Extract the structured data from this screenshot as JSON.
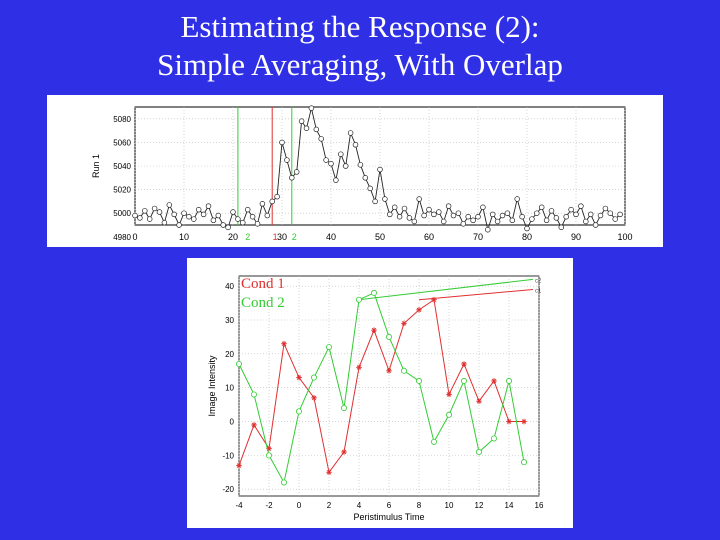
{
  "slide": {
    "title_line1": "Estimating the Response (2):",
    "title_line2": "Simple Averaging, With Overlap"
  },
  "colors": {
    "background": "#2f2fe6",
    "cond1": "#e03030",
    "cond2": "#33cc33",
    "run": "#222222"
  },
  "chart_data": [
    {
      "type": "line",
      "ylabel": "Run 1",
      "xlim": [
        0,
        100
      ],
      "ylim": [
        4990,
        5090
      ],
      "xticks": [
        "0",
        "10",
        "20",
        "30",
        "40",
        "50",
        "60",
        "70",
        "80",
        "90",
        "100"
      ],
      "yticks": [
        "4980",
        "5000",
        "5020",
        "5040",
        "5060",
        "5080"
      ],
      "grid": true,
      "series": [
        {
          "values": [
            4998,
            4996,
            5002,
            4995,
            5004,
            5001,
            4992,
            5007,
            4999,
            4990,
            5000,
            4997,
            4995,
            5003,
            4999,
            5006,
            4994,
            4998,
            4990,
            4988,
            5001,
            4995,
            4992,
            5003,
            4997,
            4991,
            5008,
            4998,
            5010,
            5014,
            5060,
            5045,
            5030,
            5035,
            5078,
            5072,
            5089,
            5071,
            5063,
            5045,
            5042,
            5028,
            5050,
            5040,
            5068,
            5058,
            5041,
            5030,
            5021,
            5010,
            5037,
            5012,
            4999,
            5005,
            4997,
            5004,
            4996,
            4993,
            5012,
            4998,
            5003,
            4999,
            5001,
            4993,
            5006,
            4998,
            5000,
            4991,
            4997,
            4994,
            4997,
            5005,
            4986,
            4999,
            4993,
            4998,
            5000,
            4994,
            5012,
            4997,
            4987,
            4995,
            5000,
            5005,
            4994,
            5002,
            4996,
            4988,
            4997,
            5003,
            4999,
            5006,
            4993,
            4999,
            4990,
            4998,
            5004,
            5000,
            4995,
            4999
          ]
        }
      ],
      "markers": {
        "cond2": [
          21,
          32
        ],
        "cond1": [
          28
        ],
        "labels": [
          {
            "x": 23,
            "text": "2",
            "color_key": "cond2"
          },
          {
            "x": 28.6,
            "text": "1",
            "color_key": "cond1"
          },
          {
            "x": 32.5,
            "text": "2",
            "color_key": "cond2"
          }
        ]
      }
    },
    {
      "type": "line",
      "xlabel": "Peristimulus Time",
      "ylabel": "Image Intensity",
      "xlim": [
        -4,
        16
      ],
      "ylim": [
        -22,
        43
      ],
      "xticks": [
        "-4",
        "-2",
        "0",
        "2",
        "4",
        "6",
        "8",
        "10",
        "12",
        "14",
        "16"
      ],
      "yticks": [
        "-20",
        "-10",
        "0",
        "10",
        "20",
        "30",
        "40"
      ],
      "grid": true,
      "legend": [
        {
          "text": "Cond 1",
          "color_key": "cond1"
        },
        {
          "text": "Cond 2",
          "color_key": "cond2"
        }
      ],
      "series": [
        {
          "color_key": "cond1",
          "marker": "star",
          "x": [
            -4,
            -3,
            -2,
            -1,
            0,
            1,
            2,
            3,
            4,
            5,
            6,
            7,
            8,
            9,
            10,
            11,
            12,
            13,
            14,
            15
          ],
          "values": [
            -13,
            -1,
            -8,
            23,
            13,
            7,
            -15,
            -9,
            16,
            27,
            15,
            29,
            33,
            36,
            8,
            17,
            6,
            12,
            0,
            0
          ]
        },
        {
          "color_key": "cond2",
          "marker": "circle",
          "x": [
            -4,
            -3,
            -2,
            -1,
            0,
            1,
            2,
            3,
            4,
            5,
            6,
            7,
            8,
            9,
            10,
            11,
            12,
            13,
            14,
            15
          ],
          "values": [
            17,
            8,
            -10,
            -18,
            3,
            13,
            22,
            4,
            36,
            38,
            25,
            15,
            12,
            -6,
            2,
            12,
            -9,
            -5,
            12,
            -12
          ]
        }
      ],
      "trend_lines": [
        {
          "color_key": "cond2",
          "x": [
            4,
            15.6
          ],
          "values": [
            36,
            42
          ],
          "label": "c2"
        },
        {
          "color_key": "cond1",
          "x": [
            8,
            15.6
          ],
          "values": [
            36,
            39
          ],
          "label": "c1"
        }
      ]
    }
  ]
}
